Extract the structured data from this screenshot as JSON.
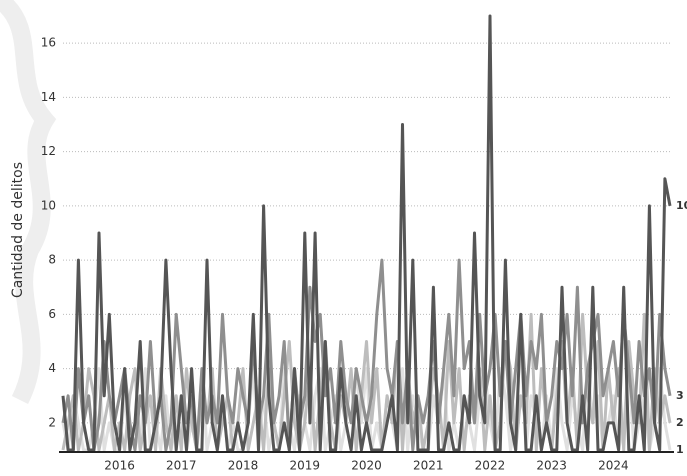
{
  "chart_data": {
    "type": "line",
    "y_label": "Cantidad de delitos",
    "categories": [
      null,
      null,
      null,
      null,
      null,
      null,
      null,
      null,
      null,
      null,
      null,
      "2016",
      null,
      null,
      null,
      null,
      null,
      null,
      null,
      null,
      null,
      null,
      null,
      "2017",
      null,
      null,
      null,
      null,
      null,
      null,
      null,
      null,
      null,
      null,
      null,
      "2018",
      null,
      null,
      null,
      null,
      null,
      null,
      null,
      null,
      null,
      null,
      null,
      "2019",
      null,
      null,
      null,
      null,
      null,
      null,
      null,
      null,
      null,
      null,
      null,
      "2020",
      null,
      null,
      null,
      null,
      null,
      null,
      null,
      null,
      null,
      null,
      null,
      "2021",
      null,
      null,
      null,
      null,
      null,
      null,
      null,
      null,
      null,
      null,
      null,
      "2022",
      null,
      null,
      null,
      null,
      null,
      null,
      null,
      null,
      null,
      null,
      null,
      "2023",
      null,
      null,
      null,
      null,
      null,
      null,
      null,
      null,
      null,
      null,
      null,
      "2024",
      null,
      null,
      null,
      null,
      null,
      null,
      null,
      null,
      null,
      null,
      null
    ],
    "series": [
      {
        "color": "#e0e0e0",
        "values": [
          2,
          1,
          3,
          2,
          1,
          1,
          2,
          4,
          1,
          2,
          1,
          1,
          3,
          1,
          2,
          1,
          4,
          1,
          2,
          1,
          3,
          1,
          2,
          3,
          1,
          2,
          1,
          4,
          1,
          2,
          1,
          3,
          1,
          2,
          1,
          1,
          2,
          4,
          1,
          3,
          1,
          2,
          1,
          4,
          2,
          1,
          3,
          2,
          1,
          3,
          4,
          1,
          2,
          3,
          1,
          2,
          1,
          4,
          2,
          4,
          1,
          2,
          1,
          3,
          2,
          1,
          4,
          1,
          3,
          2,
          1,
          1,
          3,
          2,
          4,
          1,
          2,
          1,
          3,
          2,
          1,
          3,
          4,
          2,
          1,
          4,
          3,
          1,
          2,
          5,
          1,
          3,
          2,
          1,
          3,
          1,
          4,
          2,
          1,
          3,
          2,
          1,
          4,
          2,
          3,
          1,
          2,
          3,
          1,
          2,
          4,
          1,
          2,
          3,
          1,
          2,
          4,
          2,
          1
        ]
      },
      {
        "color": "#bdbdbd",
        "values": [
          1,
          2,
          3,
          1,
          2,
          4,
          3,
          1,
          2,
          3,
          1,
          2,
          1,
          3,
          4,
          1,
          2,
          3,
          1,
          4,
          2,
          1,
          3,
          1,
          4,
          2,
          1,
          3,
          2,
          4,
          1,
          2,
          3,
          1,
          2,
          4,
          1,
          2,
          3,
          1,
          4,
          2,
          1,
          3,
          5,
          2,
          1,
          2,
          4,
          1,
          3,
          5,
          2,
          1,
          3,
          2,
          4,
          1,
          3,
          5,
          2,
          4,
          1,
          3,
          2,
          5,
          1,
          4,
          2,
          3,
          1,
          2,
          4,
          3,
          1,
          5,
          2,
          4,
          1,
          3,
          2,
          4,
          1,
          3,
          1,
          2,
          5,
          4,
          1,
          3,
          2,
          6,
          1,
          4,
          2,
          1,
          3,
          5,
          2,
          4,
          1,
          6,
          3,
          2,
          5,
          1,
          4,
          2,
          4,
          1,
          5,
          3,
          2,
          6,
          1,
          4,
          2,
          3,
          2
        ]
      },
      {
        "color": "#8f8f8f",
        "values": [
          2,
          3,
          1,
          4,
          2,
          3,
          1,
          2,
          5,
          3,
          2,
          3,
          4,
          2,
          1,
          3,
          2,
          5,
          2,
          3,
          1,
          2,
          6,
          4,
          2,
          3,
          1,
          4,
          2,
          3,
          2,
          6,
          3,
          2,
          4,
          3,
          2,
          5,
          2,
          3,
          6,
          2,
          3,
          5,
          1,
          4,
          2,
          3,
          7,
          5,
          6,
          3,
          4,
          2,
          5,
          3,
          2,
          4,
          3,
          2,
          3,
          6,
          8,
          4,
          3,
          5,
          2,
          4,
          1,
          3,
          2,
          3,
          5,
          2,
          4,
          6,
          3,
          8,
          4,
          5,
          2,
          6,
          3,
          4,
          6,
          3,
          5,
          2,
          4,
          6,
          3,
          5,
          4,
          6,
          2,
          3,
          5,
          4,
          6,
          3,
          7,
          2,
          4,
          5,
          6,
          3,
          4,
          5,
          3,
          6,
          4,
          2,
          5,
          3,
          4,
          2,
          6,
          4,
          3
        ]
      },
      {
        "color": "#555555",
        "values": [
          3,
          1,
          1,
          8,
          2,
          1,
          1,
          9,
          3,
          6,
          2,
          1,
          4,
          1,
          2,
          5,
          1,
          1,
          2,
          3,
          8,
          4,
          1,
          3,
          1,
          4,
          1,
          1,
          8,
          2,
          1,
          3,
          1,
          1,
          2,
          1,
          2,
          6,
          1,
          10,
          3,
          1,
          1,
          2,
          1,
          4,
          1,
          9,
          2,
          9,
          1,
          5,
          1,
          1,
          4,
          2,
          1,
          3,
          1,
          2,
          1,
          1,
          1,
          2,
          3,
          1,
          13,
          2,
          8,
          1,
          1,
          1,
          7,
          1,
          1,
          2,
          1,
          1,
          3,
          2,
          9,
          3,
          2,
          17,
          1,
          1,
          8,
          2,
          1,
          6,
          1,
          1,
          3,
          1,
          2,
          1,
          1,
          7,
          2,
          1,
          1,
          3,
          1,
          7,
          1,
          1,
          2,
          2,
          1,
          7,
          1,
          1,
          3,
          1,
          10,
          2,
          1,
          11,
          10
        ]
      }
    ],
    "ylim": [
      1,
      17
    ],
    "yticks": [
      2,
      4,
      6,
      8,
      10,
      12,
      14,
      16
    ],
    "grid": true
  }
}
